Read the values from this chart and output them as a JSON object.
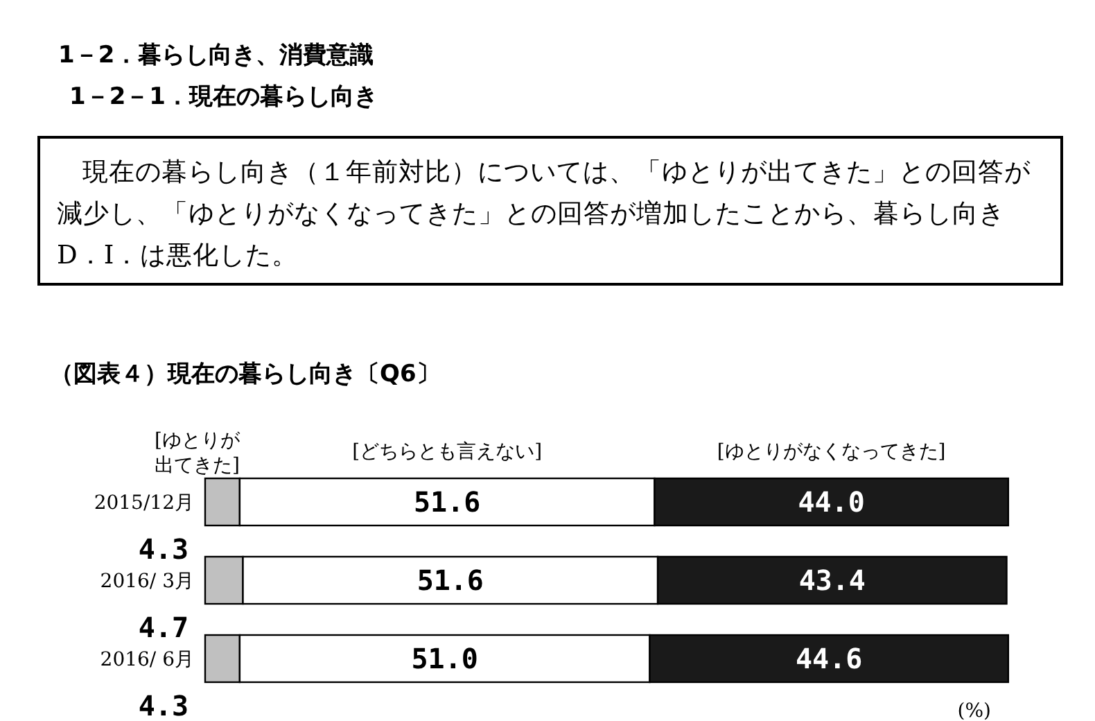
{
  "chart_data": {
    "type": "bar",
    "orientation": "horizontal",
    "stacked": true,
    "title": "（図表４）現在の暮らし向き〔Q6〕",
    "annotations": [
      "1－2．暮らし向き、消費意識",
      "1－2－1．現在の暮らし向き",
      "現在の暮らし向き（１年前対比）については、「ゆとりが出てきた」との回答が減少し、「ゆとりがなくなってきた」との回答が増加したことから、暮らし向きD．I．は悪化した。",
      "(%)"
    ],
    "categories": [
      "2015/12月",
      "2016/ 3月",
      "2016/ 6月"
    ],
    "xlim": [
      0,
      100
    ],
    "tick_labels": "y",
    "series": [
      {
        "name": "[ゆとりが出てきた]",
        "color": "#c0c0c0",
        "values": [
          4.3,
          4.7,
          4.3
        ],
        "value_labels": [
          "4.3",
          "4.7",
          "4.3"
        ]
      },
      {
        "name": "[どちらとも言えない]",
        "color": "#ffffff",
        "values": [
          51.6,
          51.6,
          51.0
        ],
        "value_labels": [
          "51.6",
          "51.6",
          "51.0"
        ]
      },
      {
        "name": "[ゆとりがなくなってきた]",
        "color": "#1a1a1a",
        "values": [
          44.0,
          43.4,
          44.6
        ],
        "value_labels": [
          "44.0",
          "43.4",
          "44.6"
        ]
      }
    ]
  }
}
